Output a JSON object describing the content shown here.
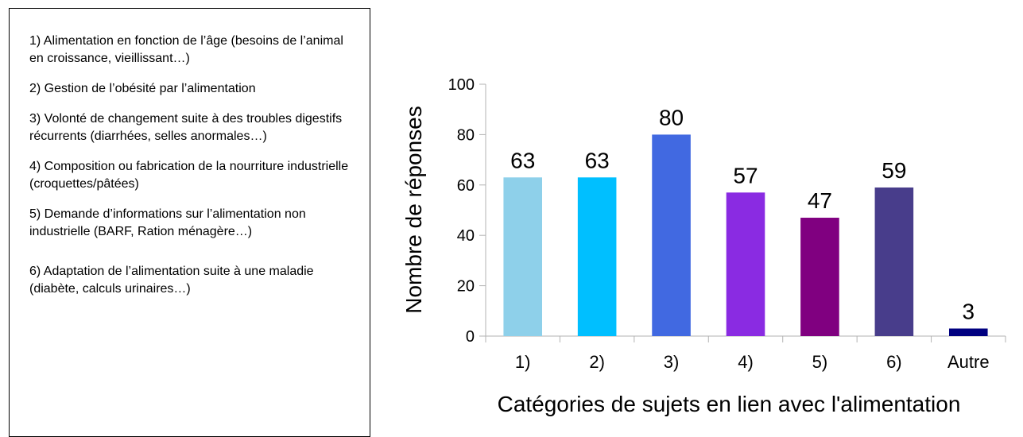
{
  "legend": {
    "items": [
      "1) Alimentation en fonction de l’âge (besoins de l’animal en croissance, vieillissant…)",
      "2) Gestion de l’obésité par l’alimentation",
      "3) Volonté de changement suite à des troubles digestifs récurrents (diarrhées, selles anormales…)",
      "4) Composition ou fabrication de la nourriture industrielle (croquettes/pâtées)",
      "5) Demande d’informations sur l’alimentation non industrielle (BARF, Ration ménagère…)",
      "6) Adaptation de l’alimentation suite à une maladie (diabète, calculs urinaires…)"
    ]
  },
  "chart_data": {
    "type": "bar",
    "title": "",
    "xlabel": "Catégories de sujets en lien avec l'alimentation",
    "ylabel": "Nombre de réponses",
    "categories": [
      "1)",
      "2)",
      "3)",
      "4)",
      "5)",
      "6)",
      "Autre"
    ],
    "values": [
      63,
      63,
      80,
      57,
      47,
      59,
      3
    ],
    "colors": [
      "#8ed0ea",
      "#00bfff",
      "#4169e1",
      "#8a2be2",
      "#800080",
      "#483d8b",
      "#000080"
    ],
    "ylim": [
      0,
      100
    ],
    "yticks": [
      0,
      20,
      40,
      60,
      80,
      100
    ],
    "grid": false,
    "legend": "none"
  }
}
